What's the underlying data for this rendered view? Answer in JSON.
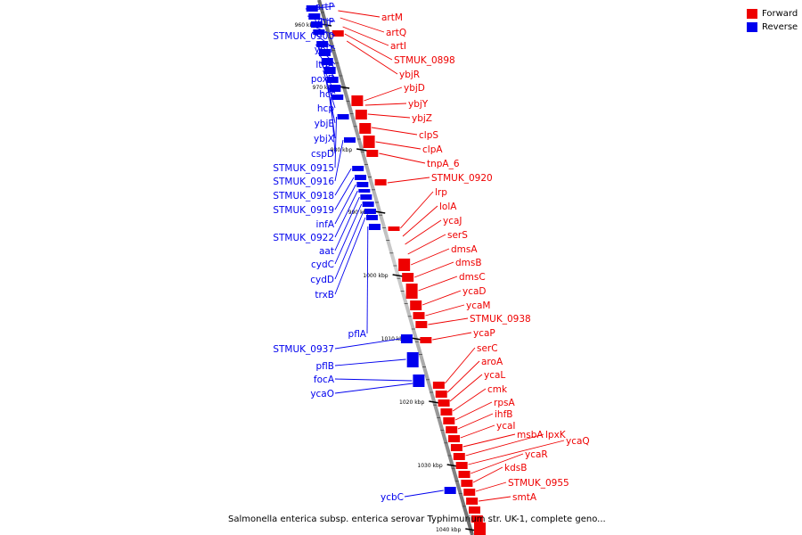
{
  "legend": {
    "forward_label": "Forward",
    "reverse_label": "Reverse",
    "forward_color": "#ee0000",
    "reverse_color": "#0000ee"
  },
  "caption": "Salmonella enterica subsp. enterica serovar Typhimurium str. UK-1, complete geno...",
  "ticks": [
    {
      "label": "960 kbp",
      "kbp": 960
    },
    {
      "label": "970 kbp",
      "kbp": 970
    },
    {
      "label": "980 kbp",
      "kbp": 980
    },
    {
      "label": "990 kbp",
      "kbp": 990
    },
    {
      "label": "1000 kbp",
      "kbp": 1000
    },
    {
      "label": "1010 kbp",
      "kbp": 1010
    },
    {
      "label": "1020 kbp",
      "kbp": 1020
    },
    {
      "label": "1030 kbp",
      "kbp": 1030
    },
    {
      "label": "1040 kbp",
      "kbp": 1040
    }
  ],
  "reverse_genes": [
    "artP",
    "ybjP",
    "STMUK_0900",
    "ybjT",
    "ltaA",
    "poxB",
    "hcr",
    "hcp",
    "ybjE",
    "ybjX",
    "cspD",
    "STMUK_0915",
    "STMUK_0916",
    "STMUK_0918",
    "STMUK_0919",
    "infA",
    "STMUK_0922",
    "aat",
    "cydC",
    "cydD",
    "trxB",
    "pflA",
    "STMUK_0937",
    "pflB",
    "focA",
    "ycaO",
    "ycbC"
  ],
  "forward_genes": [
    "artM",
    "artQ",
    "artI",
    "STMUK_0898",
    "ybjR",
    "ybjD",
    "ybjY",
    "ybjZ",
    "clpS",
    "clpA",
    "tnpA_6",
    "STMUK_0920",
    "lrp",
    "lolA",
    "ycaJ",
    "serS",
    "dmsA",
    "dmsB",
    "dmsC",
    "ycaD",
    "ycaM",
    "STMUK_0938",
    "ycaP",
    "serC",
    "aroA",
    "ycaL",
    "cmk",
    "rpsA",
    "ihfB",
    "ycaI",
    "msbA",
    "lpxK",
    "ycaQ",
    "ycaR",
    "kdsB",
    "STMUK_0955",
    "smtA"
  ]
}
